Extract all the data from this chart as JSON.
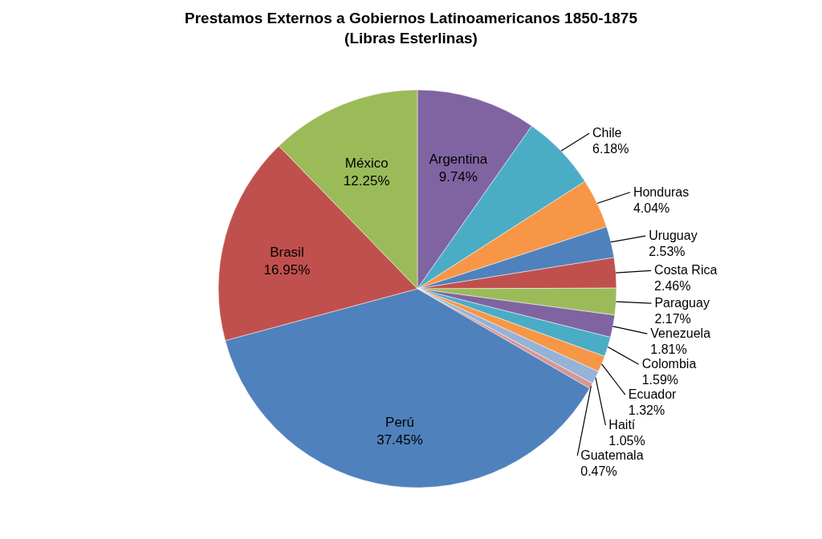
{
  "chart_data": {
    "type": "pie",
    "title": "Prestamos Externos a Gobiernos Latinoamericanos 1850-1875",
    "subtitle": "(Libras Esterlinas)",
    "categories": [
      "Argentina",
      "Chile",
      "Honduras",
      "Uruguay",
      "Costa Rica",
      "Paraguay",
      "Venezuela",
      "Colombia",
      "Ecuador",
      "Haití",
      "Guatemala",
      "Perú",
      "Brasil",
      "México"
    ],
    "values": [
      9.74,
      6.18,
      4.04,
      2.53,
      2.46,
      2.17,
      1.81,
      1.59,
      1.32,
      1.05,
      0.47,
      37.45,
      16.95,
      12.25
    ],
    "value_labels": [
      "9.74%",
      "6.18%",
      "4.04%",
      "2.53%",
      "2.46%",
      "2.17%",
      "1.81%",
      "1.59%",
      "1.32%",
      "1.05%",
      "0.47%",
      "37.45%",
      "16.95%",
      "12.25%"
    ],
    "colors": [
      "#8064a2",
      "#4bacc6",
      "#f79646",
      "#4f81bd",
      "#c0504d",
      "#9bbb59",
      "#8064a2",
      "#4bacc6",
      "#f79646",
      "#95b3d7",
      "#d99694",
      "#4f81bd",
      "#c0504d",
      "#9bbb59"
    ],
    "legend": false
  }
}
